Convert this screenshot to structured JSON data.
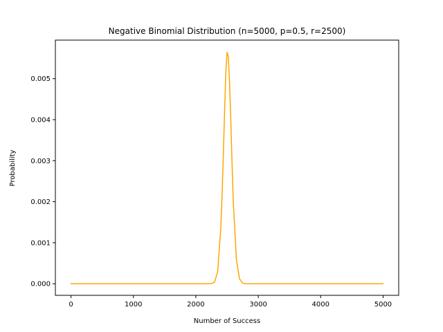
{
  "chart_data": {
    "type": "line",
    "title": "Negative Binomial Distribution (n=5000, p=0.5, r=2500)",
    "xlabel": "Number of Success",
    "ylabel": "Probability",
    "xlim": [
      -250,
      5250
    ],
    "ylim": [
      -0.000283,
      0.00594
    ],
    "xticks": [
      0,
      1000,
      2000,
      3000,
      4000,
      5000
    ],
    "xtick_labels": [
      "0",
      "1000",
      "2000",
      "3000",
      "4000",
      "5000"
    ],
    "yticks": [
      0.0,
      0.001,
      0.002,
      0.003,
      0.004,
      0.005
    ],
    "ytick_labels": [
      "0.000",
      "0.001",
      "0.002",
      "0.003",
      "0.004",
      "0.005"
    ],
    "grid": false,
    "series": [
      {
        "color": "#FFA500",
        "x": [
          0,
          500,
          1000,
          1500,
          2000,
          2200,
          2250,
          2300,
          2350,
          2400,
          2420,
          2440,
          2460,
          2480,
          2500,
          2520,
          2540,
          2560,
          2580,
          2600,
          2650,
          2700,
          2750,
          2800,
          3000,
          4000,
          5000
        ],
        "y": [
          0,
          0,
          0,
          0,
          0,
          2e-07,
          3.6e-06,
          4.11e-05,
          0.000294,
          0.001355,
          0.002136,
          0.003104,
          0.00416,
          0.005138,
          0.005642,
          0.005542,
          0.004933,
          0.003988,
          0.002945,
          0.001995,
          0.000589,
          0.00012,
          1.57e-05,
          1.4e-06,
          0,
          0,
          0
        ]
      }
    ]
  }
}
